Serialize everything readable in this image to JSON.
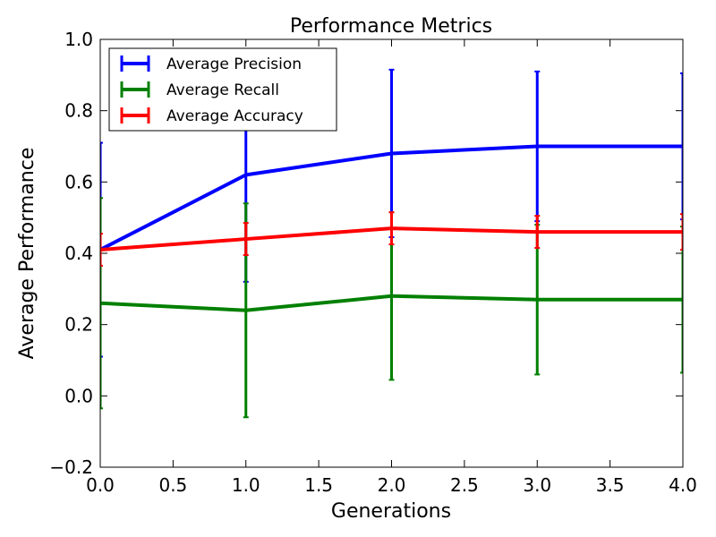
{
  "chart_data": {
    "type": "line",
    "title": "Performance Metrics",
    "xlabel": "Generations",
    "ylabel": "Average Performance",
    "xlim": [
      0.0,
      4.0
    ],
    "ylim": [
      -0.2,
      1.0
    ],
    "x_ticks": [
      "0.0",
      "0.5",
      "1.0",
      "1.5",
      "2.0",
      "2.5",
      "3.0",
      "3.5",
      "4.0"
    ],
    "y_ticks": [
      "−0.2",
      "0.0",
      "0.2",
      "0.4",
      "0.6",
      "0.8",
      "1.0"
    ],
    "grid": false,
    "legend_position": "top-left",
    "x": [
      0,
      1,
      2,
      3,
      4
    ],
    "series": [
      {
        "name": "Average Precision",
        "color": "#0000ff",
        "values": [
          0.41,
          0.62,
          0.68,
          0.7,
          0.7
        ],
        "errors": [
          0.3,
          0.3,
          0.235,
          0.21,
          0.205
        ]
      },
      {
        "name": "Average Recall",
        "color": "#008000",
        "values": [
          0.26,
          0.24,
          0.28,
          0.27,
          0.27
        ],
        "errors": [
          0.295,
          0.3,
          0.235,
          0.21,
          0.205
        ]
      },
      {
        "name": "Average Accuracy",
        "color": "#ff0000",
        "values": [
          0.41,
          0.44,
          0.47,
          0.46,
          0.46
        ],
        "errors": [
          0.045,
          0.045,
          0.045,
          0.045,
          0.05
        ]
      }
    ]
  }
}
